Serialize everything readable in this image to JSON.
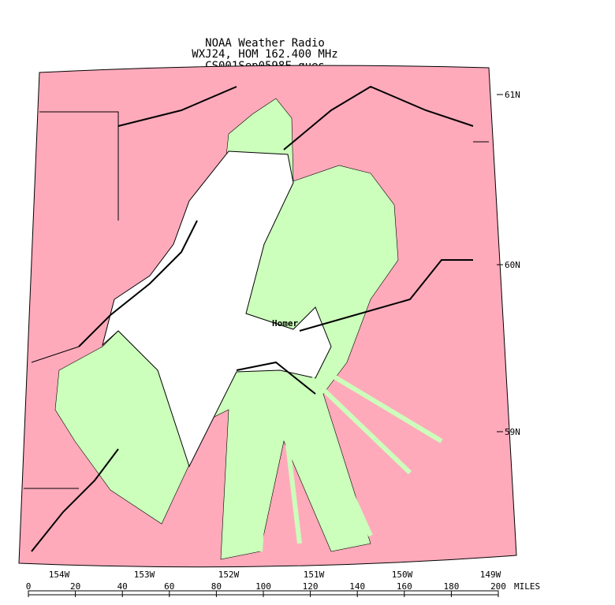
{
  "header": {
    "lines": [
      "NOAA Weather Radio",
      "WXJ24, HOM 162.400 MHz",
      "CS001Sep0598F.ques"
    ]
  },
  "map": {
    "place_labels": [
      "Homer"
    ],
    "lat_labels": [
      "61N",
      "60N",
      "59N"
    ],
    "lon_labels": [
      "154W",
      "153W",
      "152W",
      "151W",
      "150W",
      "149W"
    ]
  },
  "scale": {
    "labels": [
      "0",
      "20",
      "40",
      "60",
      "80",
      "100",
      "120",
      "140",
      "160",
      "180",
      "200"
    ],
    "unit": "MILES"
  }
}
